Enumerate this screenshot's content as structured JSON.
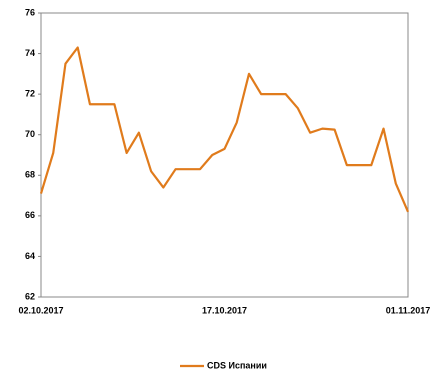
{
  "chart_data": {
    "type": "line",
    "categories": [
      "02.10.2017",
      null,
      null,
      null,
      null,
      null,
      null,
      null,
      null,
      null,
      null,
      null,
      null,
      null,
      null,
      "17.10.2017",
      null,
      null,
      null,
      null,
      null,
      null,
      null,
      null,
      null,
      null,
      null,
      null,
      null,
      null,
      "01.11.2017"
    ],
    "series": [
      {
        "name": "CDS Испании",
        "color": "#e07b1c",
        "values": [
          67.1,
          69.1,
          73.5,
          74.3,
          71.5,
          71.5,
          71.5,
          69.1,
          70.1,
          68.2,
          67.4,
          68.3,
          68.3,
          68.3,
          69.0,
          69.3,
          70.6,
          73.0,
          72.0,
          72.0,
          72.0,
          71.3,
          70.1,
          70.3,
          70.25,
          68.5,
          68.5,
          68.5,
          70.3,
          67.6,
          66.2
        ]
      }
    ],
    "ylim": [
      62,
      76
    ],
    "yticks": [
      62,
      64,
      66,
      68,
      70,
      72,
      74,
      76
    ],
    "grid": false,
    "legend": "bottom"
  }
}
